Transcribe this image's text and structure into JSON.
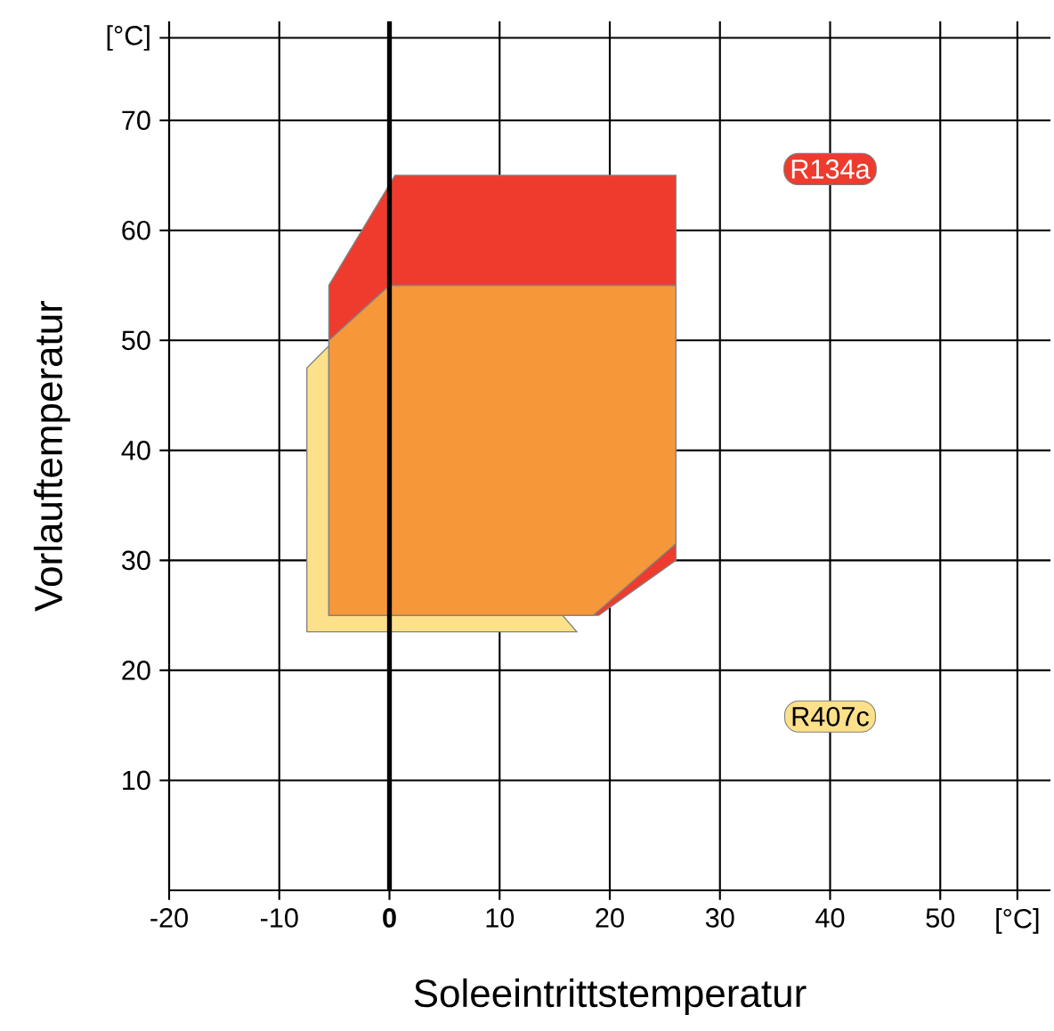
{
  "chart_data": {
    "type": "area",
    "xlabel": "Soleeintrittstemperatur",
    "ylabel": "Vorlauftemperatur",
    "xlim": [
      -20,
      60
    ],
    "ylim": [
      0,
      79
    ],
    "xticks": [
      -20,
      -10,
      0,
      10,
      20,
      30,
      40,
      50,
      {
        "value": 57,
        "label": "[°C]"
      }
    ],
    "yticks": [
      10,
      20,
      30,
      40,
      50,
      60,
      70,
      {
        "value": 77.5,
        "label": "[°C]"
      }
    ],
    "grid": true,
    "legend": "right",
    "ref_lines": [
      {
        "axis": "x",
        "value": 0,
        "color": "#000000"
      }
    ],
    "series": [
      {
        "name": "R407c",
        "color": "#fde08a",
        "x": [
          -7.5,
          -7.5,
          -5.5,
          null,
          null,
          17
        ],
        "values": [
          23.5,
          47.5,
          49.5,
          null,
          null,
          23.5
        ]
      },
      {
        "name": "R134a",
        "color": "#ee3b2e",
        "x": [
          -5.5,
          -5.5,
          0.5,
          26,
          26,
          19
        ],
        "values": [
          25,
          55,
          65,
          65,
          30,
          25
        ]
      },
      {
        "color": "#f6973a",
        "x": [
          -5.5,
          -5.5,
          0,
          26,
          26,
          18.5
        ],
        "values": [
          25,
          50,
          55,
          55,
          31.5,
          25
        ]
      }
    ]
  }
}
